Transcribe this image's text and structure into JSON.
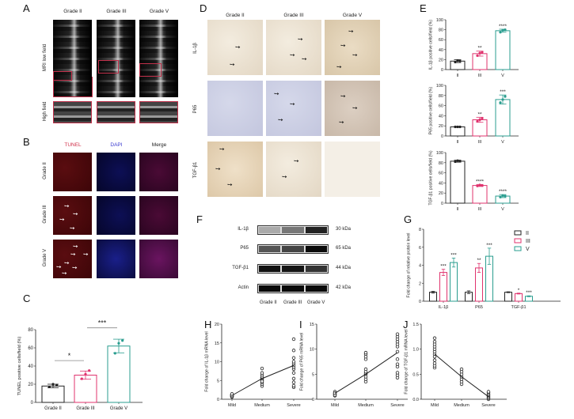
{
  "panels": {
    "A": "A",
    "B": "B",
    "C": "C",
    "D": "D",
    "E": "E",
    "F": "F",
    "G": "G",
    "H": "H",
    "I": "I",
    "J": "J"
  },
  "panel_a": {
    "columns": [
      "Grade II",
      "Grade III",
      "Grade V"
    ],
    "rows": [
      "MRI low field",
      "High field"
    ]
  },
  "panel_b": {
    "columns": [
      "TUNEL",
      "DAPI",
      "Merge"
    ],
    "column_colors": [
      "#d0304a",
      "#3a3ad0",
      "#222222"
    ],
    "rows": [
      "Grade II",
      "Grade III",
      "Grade V"
    ]
  },
  "panel_d": {
    "columns": [
      "Grade II",
      "Grade III",
      "Grade V"
    ],
    "rows": [
      "IL-1β",
      "P65",
      "TGF-β1"
    ]
  },
  "panel_f": {
    "rows": [
      {
        "label": "IL-1β",
        "size": "30 kDa"
      },
      {
        "label": "P65",
        "size": "65 kDa"
      },
      {
        "label": "TGF-β1",
        "size": "44 kDa"
      },
      {
        "label": "Actin",
        "size": "42 kDa"
      }
    ],
    "columns": [
      "Grade II",
      "Grade III",
      "Grade V"
    ]
  },
  "colors": {
    "II": "#222222",
    "III": "#e0336e",
    "V": "#2a9d8f"
  },
  "chart_data": [
    {
      "id": "C",
      "type": "bar",
      "categories": [
        "Grade II",
        "Grade III",
        "Grade V"
      ],
      "values": [
        18,
        30,
        62
      ],
      "errors": [
        2,
        4.5,
        7.5
      ],
      "points": [
        [
          17,
          20,
          19
        ],
        [
          26,
          31,
          35
        ],
        [
          54,
          65,
          68
        ]
      ],
      "ylabel": "TUNEL positive cells/field (%)",
      "ylim": [
        0,
        80
      ],
      "yticks": [
        0,
        20,
        40,
        60,
        80
      ],
      "significance": [
        {
          "from": 0,
          "to": 1,
          "label": "*"
        },
        {
          "from": 1,
          "to": 2,
          "label": "***"
        }
      ]
    },
    {
      "id": "E1",
      "type": "bar",
      "categories": [
        "II",
        "III",
        "V"
      ],
      "values": [
        17,
        32,
        78
      ],
      "errors": [
        3,
        5,
        3
      ],
      "points": [
        [
          15,
          18,
          17
        ],
        [
          28,
          33,
          35
        ],
        [
          75,
          79,
          80
        ]
      ],
      "stars": [
        "",
        "**",
        "****"
      ],
      "ylabel": "IL-1β positive cells/field (%)",
      "ylim": [
        0,
        100
      ],
      "yticks": [
        0,
        20,
        40,
        60,
        80,
        100
      ]
    },
    {
      "id": "E2",
      "type": "bar",
      "categories": [
        "II",
        "III",
        "V"
      ],
      "values": [
        18,
        32,
        72
      ],
      "errors": [
        1,
        5,
        9
      ],
      "points": [
        [
          18,
          18,
          18
        ],
        [
          29,
          32,
          35
        ],
        [
          66,
          72,
          78
        ]
      ],
      "stars": [
        "",
        "**",
        "***"
      ],
      "ylabel": "P65 positive cells/field (%)",
      "ylim": [
        0,
        100
      ],
      "yticks": [
        0,
        20,
        40,
        60,
        80,
        100
      ]
    },
    {
      "id": "E3",
      "type": "bar",
      "categories": [
        "II",
        "III",
        "V"
      ],
      "values": [
        83,
        35,
        14
      ],
      "errors": [
        2,
        2,
        3
      ],
      "points": [
        [
          82,
          84,
          83
        ],
        [
          34,
          36,
          35
        ],
        [
          12,
          15,
          14
        ]
      ],
      "stars": [
        "",
        "****",
        "****"
      ],
      "ylabel": "TGF-β1 positive cells/field (%)",
      "ylim": [
        0,
        100
      ],
      "yticks": [
        0,
        20,
        40,
        60,
        80,
        100
      ]
    },
    {
      "id": "G",
      "type": "grouped-bar",
      "categories": [
        "IL-1β",
        "P65",
        "TGF-β1"
      ],
      "series": [
        {
          "name": "II",
          "values": [
            1.0,
            1.0,
            1.0
          ],
          "errors": [
            0.1,
            0.15,
            0.05
          ],
          "stars": [
            "",
            "",
            ""
          ]
        },
        {
          "name": "III",
          "values": [
            3.2,
            3.7,
            0.85
          ],
          "errors": [
            0.35,
            0.5,
            0.05
          ],
          "stars": [
            "***",
            "**",
            "*"
          ]
        },
        {
          "name": "V",
          "values": [
            4.3,
            5.0,
            0.55
          ],
          "errors": [
            0.5,
            0.9,
            0.05
          ],
          "stars": [
            "***",
            "***",
            "***"
          ]
        }
      ],
      "ylabel": "Fold change of relative protein level",
      "ylim": [
        0,
        8
      ],
      "yticks": [
        0,
        2,
        4,
        6,
        8
      ],
      "legend": "top-right"
    },
    {
      "id": "H",
      "type": "scatter",
      "categories": [
        "Mild",
        "Medium",
        "Severe"
      ],
      "ylabel": "Fold change of IL-1β mRNA level",
      "ylim": [
        0,
        20
      ],
      "yticks": [
        0,
        5,
        10,
        15,
        20
      ],
      "means": [
        1.0,
        5.5,
        9.0
      ],
      "points": [
        [
          0.6,
          0.8,
          0.9,
          1.0,
          1.1,
          1.2,
          1.3,
          0.7,
          1.0,
          1.4
        ],
        [
          3.5,
          4.0,
          4.5,
          5.0,
          5.2,
          5.5,
          5.8,
          6.0,
          6.5,
          7.0,
          4.8,
          8.2
        ],
        [
          3.2,
          3.6,
          4.5,
          5.5,
          7.0,
          8.0,
          8.5,
          9.0,
          9.5,
          10.0,
          11.0,
          13.0,
          16.0
        ]
      ]
    },
    {
      "id": "I",
      "type": "scatter",
      "categories": [
        "Mild",
        "Medium",
        "Severe"
      ],
      "ylabel": "Fold change of P65 mRNA level",
      "ylim": [
        0,
        15
      ],
      "yticks": [
        0,
        5,
        10,
        15
      ],
      "means": [
        1.2,
        5.0,
        9.3
      ],
      "points": [
        [
          0.7,
          0.9,
          1.0,
          1.1,
          1.3,
          1.5,
          0.8,
          1.2
        ],
        [
          3.5,
          4.0,
          4.5,
          5.0,
          5.2,
          5.5,
          6.0,
          8.0,
          8.5,
          9.0,
          9.3
        ],
        [
          4.3,
          4.8,
          5.3,
          6.5,
          7.0,
          8.0,
          9.5,
          10.5,
          11.0,
          11.5,
          12.0,
          12.5,
          13.0
        ]
      ]
    },
    {
      "id": "J",
      "type": "scatter",
      "categories": [
        "Mild",
        "Medium",
        "Severe"
      ],
      "ylabel": "Fold change of TGF-β1 mRNA level",
      "ylim": [
        0,
        1.5
      ],
      "yticks": [
        "0.0",
        "0.5",
        "1.0",
        "1.5"
      ],
      "means": [
        0.9,
        0.45,
        0.05
      ],
      "points": [
        [
          0.63,
          0.67,
          0.72,
          0.78,
          0.85,
          0.9,
          0.95,
          1.0,
          1.05,
          1.1,
          1.15,
          1.22
        ],
        [
          0.3,
          0.35,
          0.4,
          0.45,
          0.5,
          0.55,
          0.6
        ],
        [
          0.0,
          0.02,
          0.04,
          0.06,
          0.08,
          0.1,
          0.13,
          0.15
        ]
      ]
    }
  ]
}
